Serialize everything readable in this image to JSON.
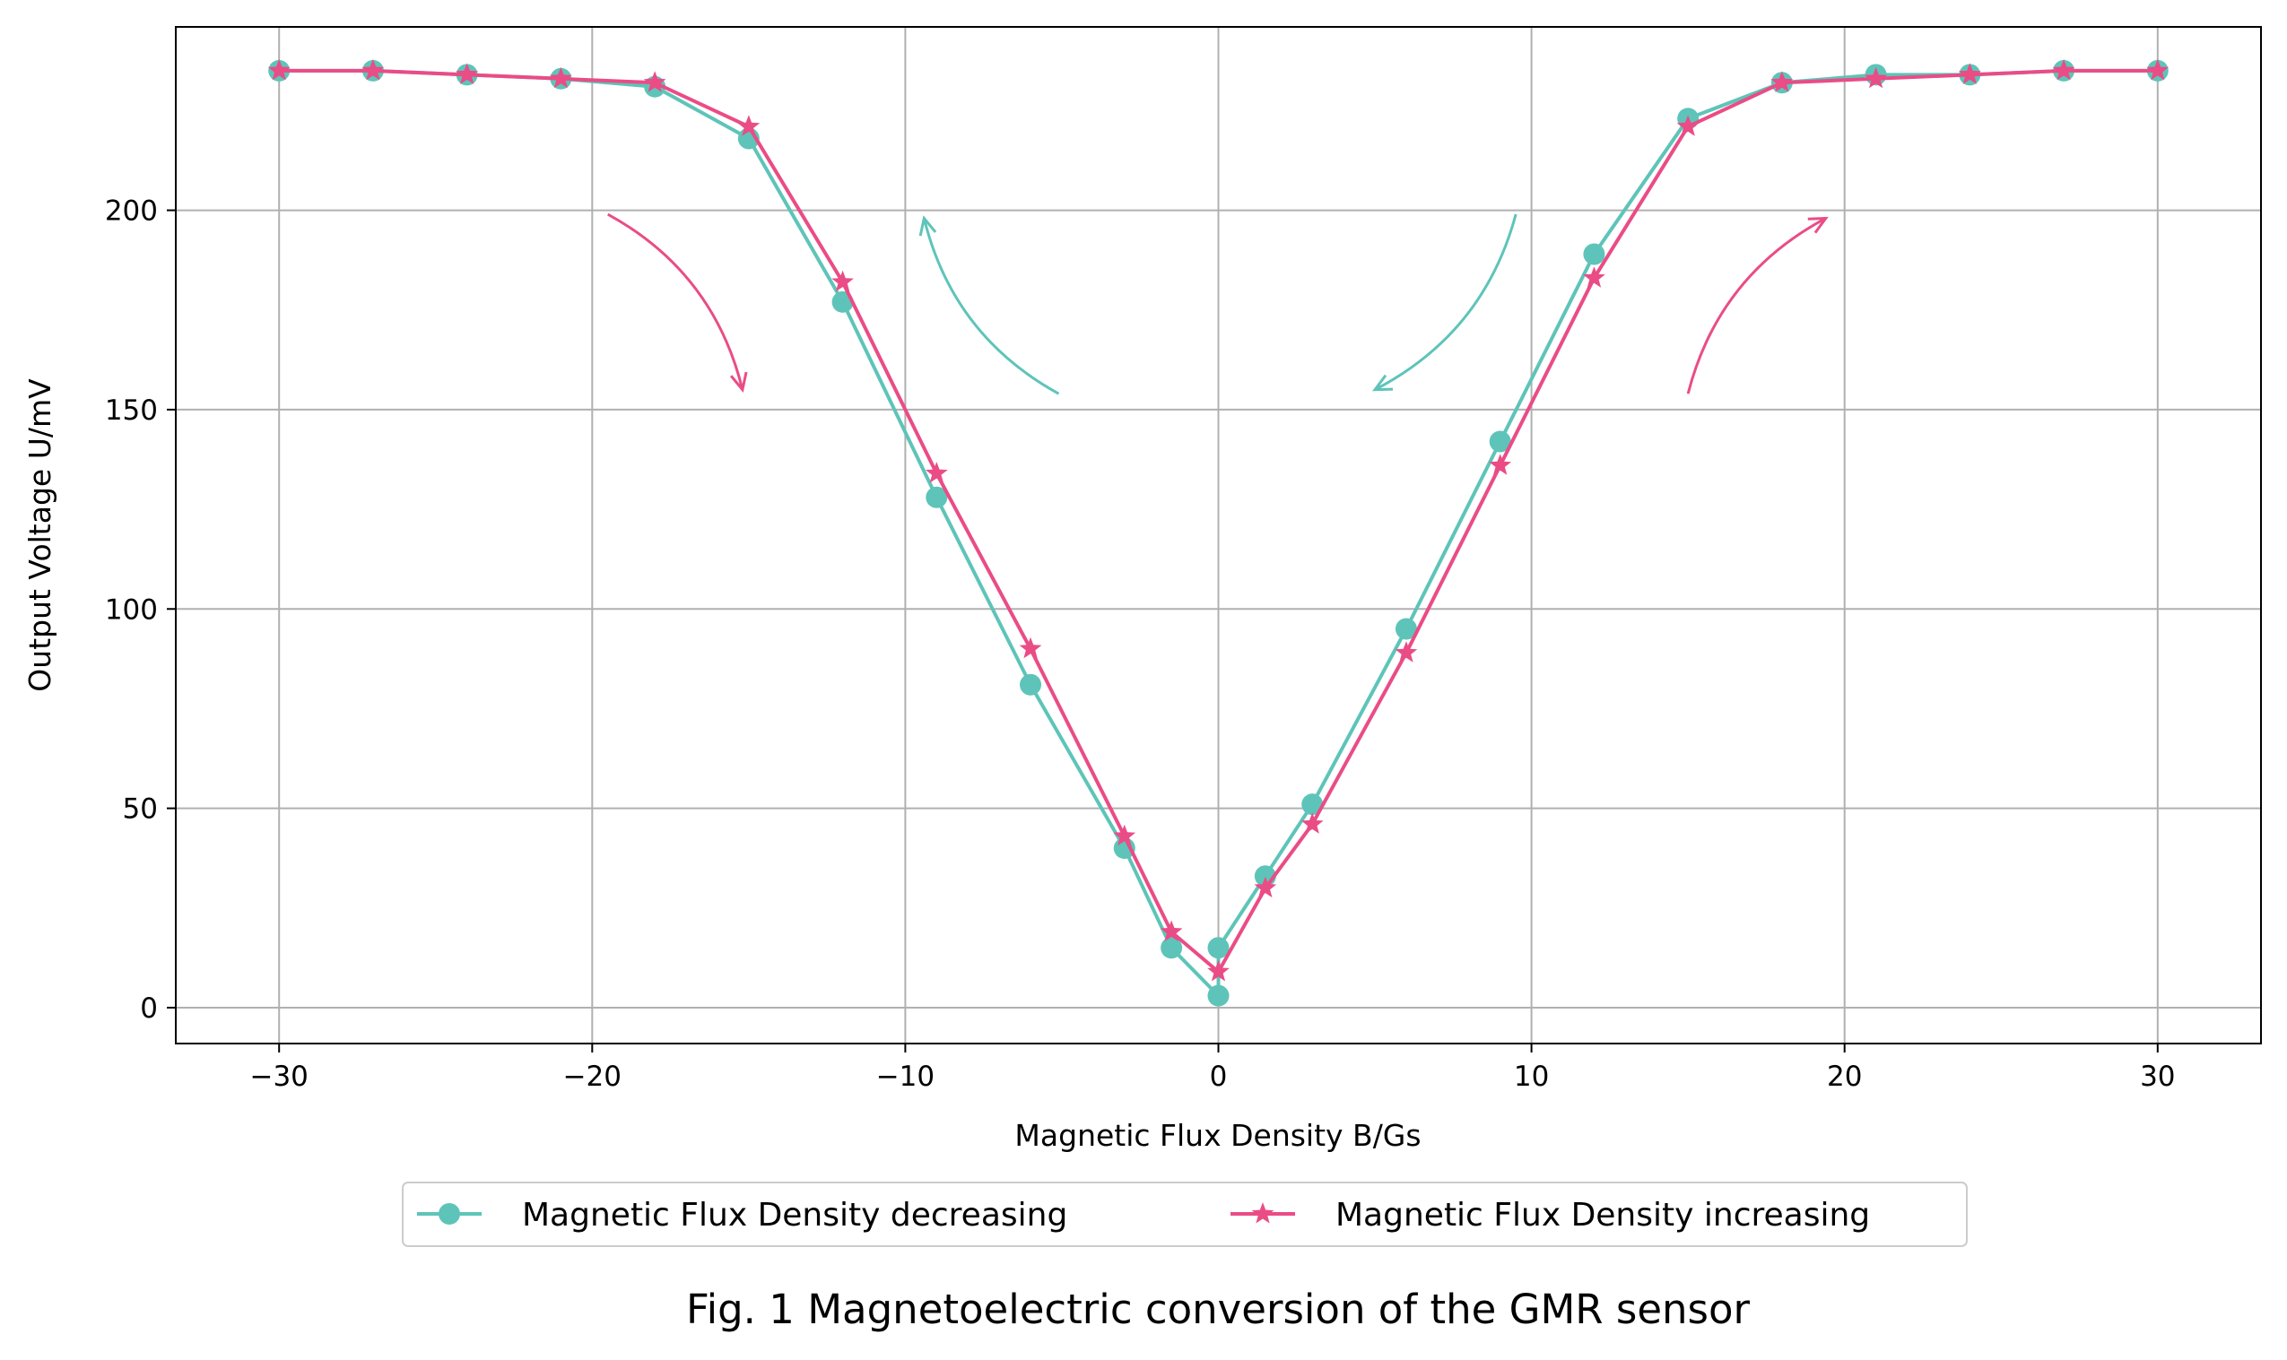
{
  "caption": "Fig. 1 Magnetoelectric conversion of the GMR sensor",
  "chart_data": {
    "type": "line",
    "xlabel": "Magnetic Flux Density B/Gs",
    "ylabel": "Output Voltage U/mV",
    "xlim": [
      -33.3,
      33.3
    ],
    "ylim": [
      -9,
      246
    ],
    "xticks": [
      -30,
      -20,
      -10,
      0,
      10,
      20,
      30
    ],
    "xtick_labels": [
      "−30",
      "−20",
      "−10",
      "0",
      "10",
      "20",
      "30"
    ],
    "yticks": [
      0,
      50,
      100,
      150,
      200
    ],
    "ytick_labels": [
      "0",
      "50",
      "100",
      "150",
      "200"
    ],
    "grid": true,
    "legend_position": "bottom-center, below plot",
    "series": [
      {
        "name": "Magnetic Flux Density decreasing",
        "color": "#5ec4b9",
        "marker": "circle",
        "x": [
          30,
          27,
          24,
          21,
          18,
          15,
          12,
          9,
          6,
          3,
          1.5,
          0,
          0,
          -1.5,
          -3,
          -6,
          -9,
          -12,
          -15,
          -18,
          -21,
          -24,
          -27,
          -30
        ],
        "y": [
          235,
          235,
          234,
          234,
          232,
          223,
          189,
          142,
          95,
          51,
          33,
          15,
          3,
          15,
          40,
          81,
          128,
          177,
          218,
          231,
          233,
          234,
          235,
          235
        ]
      },
      {
        "name": "Magnetic Flux Density increasing",
        "color": "#ea4c86",
        "marker": "star",
        "x": [
          -30,
          -27,
          -24,
          -21,
          -18,
          -15,
          -12,
          -9,
          -6,
          -3,
          -1.5,
          0,
          1.5,
          3,
          6,
          9,
          12,
          15,
          18,
          21,
          24,
          27,
          30
        ],
        "y": [
          235,
          235,
          234,
          233,
          232,
          221,
          182,
          134,
          90,
          43,
          19,
          9,
          30,
          46,
          89,
          136,
          183,
          221,
          232,
          233,
          234,
          235,
          235
        ]
      }
    ],
    "annotations": [
      {
        "kind": "arrow",
        "color": "#ea4c86",
        "from": [
          -19.5,
          199
        ],
        "to": [
          -15.2,
          155
        ]
      },
      {
        "kind": "arrow",
        "color": "#5ec4b9",
        "from": [
          -5.1,
          154
        ],
        "to": [
          -9.4,
          198
        ]
      },
      {
        "kind": "arrow",
        "color": "#5ec4b9",
        "from": [
          9.5,
          199
        ],
        "to": [
          5.0,
          155
        ]
      },
      {
        "kind": "arrow",
        "color": "#ea4c86",
        "from": [
          15.0,
          154
        ],
        "to": [
          19.4,
          198
        ]
      }
    ]
  }
}
